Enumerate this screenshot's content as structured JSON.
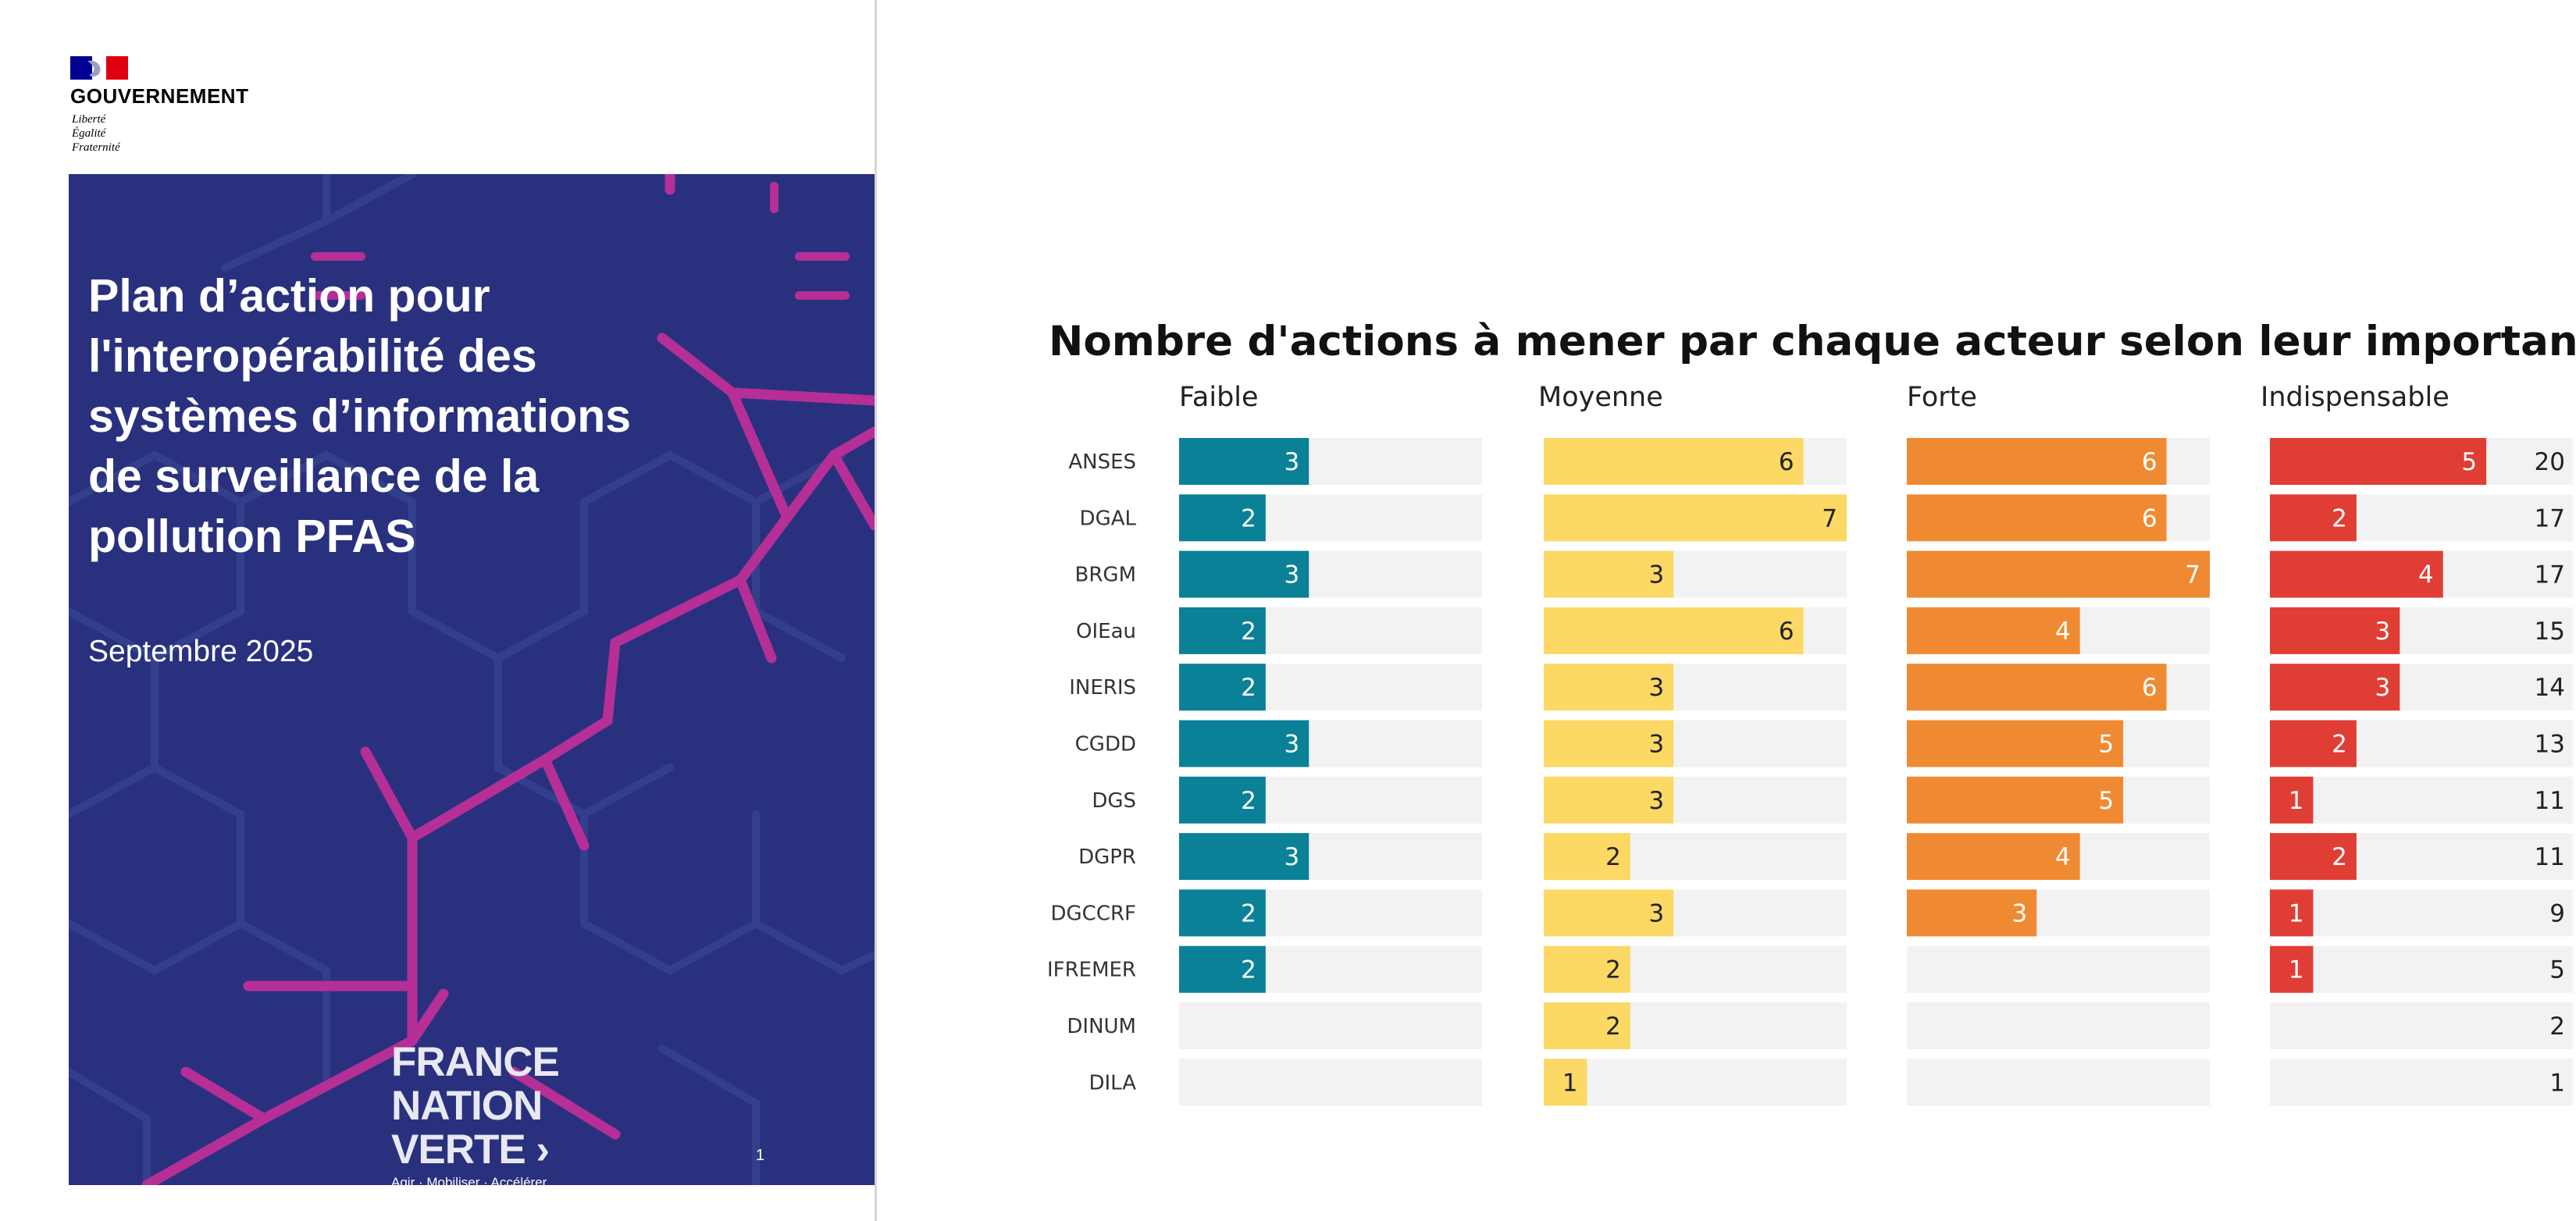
{
  "cover": {
    "gov_name": "GOUVERNEMENT",
    "gov_motto": [
      "Liberté",
      "Égalité",
      "Fraternité"
    ],
    "title_lines": [
      "Plan d’action pour",
      "l'interopérabilité des",
      "systèmes d’informations",
      "de surveillance de la",
      "pollution PFAS"
    ],
    "date": "Septembre 2025",
    "logo_lines": [
      "FRANCE",
      "NATION",
      "VERTE ›"
    ],
    "logo_slogan": "Agir · Mobiliser · Accélérer",
    "page_number": "1",
    "colors": {
      "background": "#29317e",
      "pattern_magenta": "#b52f97",
      "pattern_navy": "#343f8c",
      "flag_blue": "#000091",
      "flag_red": "#e1000f"
    }
  },
  "chart_data": {
    "type": "bar",
    "title": "Nombre d'actions à mener par chaque acteur selon leur importance",
    "categories": [
      "ANSES",
      "DGAL",
      "BRGM",
      "OIEau",
      "INERIS",
      "CGDD",
      "DGS",
      "DGPR",
      "DGCCRF",
      "IFREMER",
      "DINUM",
      "DILA"
    ],
    "series": [
      {
        "name": "Faible",
        "color": "#0a8196",
        "label_color": "#ffffff",
        "values": [
          3,
          2,
          3,
          2,
          2,
          3,
          2,
          3,
          2,
          2,
          0,
          0
        ]
      },
      {
        "name": "Moyenne",
        "color": "#fcd864",
        "label_color": "#222222",
        "values": [
          6,
          7,
          3,
          6,
          3,
          3,
          3,
          2,
          3,
          2,
          2,
          1
        ]
      },
      {
        "name": "Forte",
        "color": "#f08a32",
        "label_color": "#ffffff",
        "values": [
          6,
          6,
          7,
          4,
          6,
          5,
          5,
          4,
          3,
          0,
          0,
          0
        ]
      },
      {
        "name": "Indispensable",
        "color": "#e03d35",
        "label_color": "#ffffff",
        "values": [
          5,
          2,
          4,
          3,
          3,
          2,
          1,
          2,
          1,
          1,
          0,
          0
        ]
      }
    ],
    "totals": [
      20,
      17,
      17,
      15,
      14,
      13,
      11,
      11,
      9,
      5,
      2,
      1
    ],
    "xlim": [
      0,
      7
    ],
    "track_color": "#f2f2f2",
    "layout": "small-multiples"
  }
}
